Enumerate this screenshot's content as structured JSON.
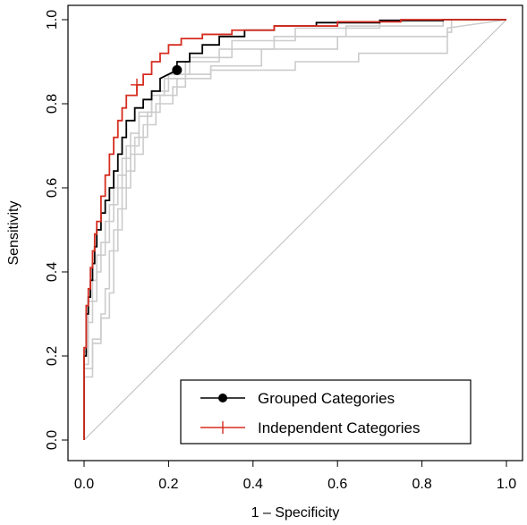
{
  "chart_data": {
    "type": "line",
    "title": "",
    "xlabel": "1 – Specificity",
    "ylabel": "Sensitivity",
    "xlim": [
      0,
      1
    ],
    "ylim": [
      0,
      1
    ],
    "x_ticks": [
      0.0,
      0.2,
      0.4,
      0.6,
      0.8,
      1.0
    ],
    "y_ticks": [
      0.0,
      0.2,
      0.4,
      0.6,
      0.8,
      1.0
    ],
    "x_tick_labels": [
      "0.0",
      "0.2",
      "0.4",
      "0.6",
      "0.8",
      "1.0"
    ],
    "y_tick_labels": [
      "0.0",
      "0.2",
      "0.4",
      "0.6",
      "0.8",
      "1.0"
    ],
    "legend": {
      "position": "bottom-right",
      "entries": [
        {
          "label": "Grouped Categories",
          "color": "#000000",
          "marker": "filled-circle"
        },
        {
          "label": "Independent Categories",
          "color": "#d62d20",
          "marker": "plus"
        }
      ]
    },
    "reference_line": {
      "x": [
        0,
        1
      ],
      "y": [
        0,
        1
      ],
      "color": "#bdbdbd"
    },
    "series": [
      {
        "name": "Grouped Categories",
        "color": "#000000",
        "marker_point": {
          "x": 0.22,
          "y": 0.88
        },
        "x": [
          0.0,
          0.0,
          0.005,
          0.005,
          0.01,
          0.01,
          0.015,
          0.015,
          0.02,
          0.02,
          0.025,
          0.025,
          0.03,
          0.03,
          0.04,
          0.04,
          0.05,
          0.05,
          0.06,
          0.06,
          0.07,
          0.07,
          0.08,
          0.08,
          0.09,
          0.09,
          0.1,
          0.1,
          0.12,
          0.12,
          0.14,
          0.14,
          0.16,
          0.16,
          0.18,
          0.18,
          0.2,
          0.22,
          0.22,
          0.25,
          0.25,
          0.28,
          0.28,
          0.32,
          0.32,
          0.38,
          0.38,
          0.45,
          0.45,
          0.55,
          0.55,
          0.7,
          0.7,
          0.85,
          0.85,
          1.0
        ],
        "y": [
          0.0,
          0.2,
          0.2,
          0.3,
          0.3,
          0.34,
          0.34,
          0.38,
          0.38,
          0.42,
          0.42,
          0.46,
          0.46,
          0.5,
          0.5,
          0.54,
          0.54,
          0.57,
          0.57,
          0.6,
          0.6,
          0.64,
          0.64,
          0.68,
          0.68,
          0.72,
          0.72,
          0.76,
          0.76,
          0.79,
          0.79,
          0.81,
          0.81,
          0.83,
          0.83,
          0.86,
          0.87,
          0.88,
          0.9,
          0.9,
          0.92,
          0.92,
          0.94,
          0.94,
          0.96,
          0.96,
          0.975,
          0.975,
          0.985,
          0.985,
          0.993,
          0.993,
          0.998,
          0.998,
          1.0,
          1.0
        ]
      },
      {
        "name": "Independent Categories",
        "color": "#d62d20",
        "marker_point": {
          "x": 0.125,
          "y": 0.845
        },
        "x": [
          0.0,
          0.0,
          0.005,
          0.005,
          0.01,
          0.01,
          0.015,
          0.015,
          0.02,
          0.02,
          0.025,
          0.025,
          0.03,
          0.03,
          0.04,
          0.04,
          0.05,
          0.05,
          0.06,
          0.06,
          0.07,
          0.07,
          0.08,
          0.08,
          0.09,
          0.09,
          0.1,
          0.1,
          0.125,
          0.125,
          0.14,
          0.14,
          0.16,
          0.16,
          0.18,
          0.18,
          0.2,
          0.2,
          0.23,
          0.23,
          0.28,
          0.28,
          0.35,
          0.35,
          0.45,
          0.45,
          0.6,
          0.6,
          0.75,
          0.75,
          1.0
        ],
        "y": [
          0.0,
          0.22,
          0.22,
          0.32,
          0.32,
          0.36,
          0.36,
          0.41,
          0.41,
          0.45,
          0.45,
          0.49,
          0.49,
          0.52,
          0.52,
          0.58,
          0.58,
          0.63,
          0.63,
          0.68,
          0.68,
          0.72,
          0.72,
          0.76,
          0.76,
          0.79,
          0.79,
          0.82,
          0.82,
          0.845,
          0.845,
          0.87,
          0.87,
          0.9,
          0.9,
          0.92,
          0.92,
          0.94,
          0.94,
          0.955,
          0.955,
          0.965,
          0.965,
          0.975,
          0.975,
          0.985,
          0.985,
          0.995,
          0.995,
          1.0,
          1.0
        ]
      },
      {
        "name": "",
        "color": "#cccccc",
        "x": [
          0.0,
          0.0,
          0.01,
          0.01,
          0.02,
          0.02,
          0.03,
          0.03,
          0.05,
          0.05,
          0.07,
          0.07,
          0.09,
          0.09,
          0.11,
          0.11,
          0.13,
          0.13,
          0.16,
          0.16,
          0.2,
          0.2,
          0.25,
          0.25,
          0.35,
          0.35,
          0.5,
          0.5,
          0.7,
          0.7,
          1.0
        ],
        "y": [
          0.0,
          0.18,
          0.18,
          0.28,
          0.28,
          0.38,
          0.38,
          0.44,
          0.44,
          0.52,
          0.52,
          0.6,
          0.6,
          0.67,
          0.67,
          0.73,
          0.73,
          0.78,
          0.78,
          0.83,
          0.83,
          0.87,
          0.87,
          0.91,
          0.91,
          0.95,
          0.95,
          0.98,
          0.98,
          1.0,
          1.0
        ]
      },
      {
        "name": "",
        "color": "#cccccc",
        "x": [
          0.0,
          0.0,
          0.02,
          0.02,
          0.04,
          0.04,
          0.05,
          0.05,
          0.06,
          0.06,
          0.08,
          0.08,
          0.1,
          0.1,
          0.12,
          0.12,
          0.15,
          0.15,
          0.18,
          0.18,
          0.22,
          0.22,
          0.3,
          0.3,
          0.42,
          0.42,
          0.6,
          0.6,
          0.86,
          0.86,
          1.0
        ],
        "y": [
          0.0,
          0.15,
          0.15,
          0.24,
          0.24,
          0.3,
          0.3,
          0.36,
          0.36,
          0.45,
          0.45,
          0.55,
          0.55,
          0.64,
          0.64,
          0.72,
          0.72,
          0.78,
          0.78,
          0.82,
          0.82,
          0.86,
          0.86,
          0.89,
          0.89,
          0.93,
          0.93,
          0.96,
          0.96,
          0.98,
          1.0
        ]
      },
      {
        "name": "",
        "color": "#cccccc",
        "x": [
          0.0,
          0.0,
          0.01,
          0.01,
          0.03,
          0.03,
          0.04,
          0.04,
          0.06,
          0.06,
          0.08,
          0.08,
          0.1,
          0.1,
          0.13,
          0.13,
          0.16,
          0.16,
          0.19,
          0.19,
          0.24,
          0.24,
          0.32,
          0.32,
          0.45,
          0.45,
          0.62,
          0.62,
          0.85,
          0.85,
          1.0
        ],
        "y": [
          0.0,
          0.21,
          0.21,
          0.33,
          0.33,
          0.4,
          0.4,
          0.47,
          0.47,
          0.56,
          0.56,
          0.63,
          0.63,
          0.7,
          0.7,
          0.77,
          0.77,
          0.82,
          0.82,
          0.86,
          0.86,
          0.9,
          0.9,
          0.93,
          0.93,
          0.96,
          0.96,
          0.985,
          0.985,
          1.0,
          1.0
        ]
      },
      {
        "name": "",
        "color": "#cccccc",
        "x": [
          0.0,
          0.0,
          0.02,
          0.02,
          0.04,
          0.04,
          0.06,
          0.06,
          0.07,
          0.07,
          0.09,
          0.09,
          0.11,
          0.11,
          0.14,
          0.14,
          0.17,
          0.17,
          0.21,
          0.21,
          0.24,
          0.24,
          0.3,
          0.3,
          0.5,
          0.5,
          0.65,
          0.65,
          0.86,
          0.86,
          0.87,
          0.87,
          1.0
        ],
        "y": [
          0.0,
          0.17,
          0.17,
          0.23,
          0.23,
          0.29,
          0.29,
          0.35,
          0.35,
          0.5,
          0.5,
          0.6,
          0.6,
          0.68,
          0.68,
          0.75,
          0.75,
          0.8,
          0.8,
          0.84,
          0.84,
          0.87,
          0.87,
          0.88,
          0.88,
          0.9,
          0.9,
          0.92,
          0.92,
          0.97,
          0.97,
          1.0,
          1.0
        ]
      }
    ]
  }
}
